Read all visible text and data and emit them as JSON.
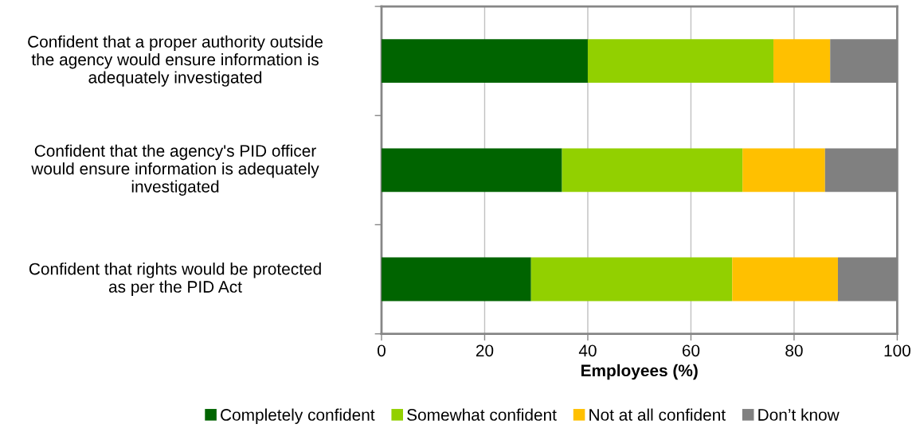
{
  "chart_data": {
    "type": "bar",
    "orientation": "horizontal",
    "stacked": true,
    "categories": [
      "Confident that a proper authority outside\nthe agency would ensure information is\nadequately investigated",
      "Confident that the agency's PID officer\nwould ensure information is adequately\ninvestigated",
      "Confident that rights would be protected\nas per the PID Act"
    ],
    "series": [
      {
        "name": "Completely confident",
        "color": "#006400",
        "values": [
          40,
          35,
          29
        ]
      },
      {
        "name": "Somewhat confident",
        "color": "#92d000",
        "values": [
          36,
          35,
          39
        ]
      },
      {
        "name": "Not at all confident",
        "color": "#ffc000",
        "values": [
          11,
          16,
          20.5
        ]
      },
      {
        "name": "Don’t know",
        "color": "#808080",
        "values": [
          13,
          14,
          11.5
        ]
      }
    ],
    "xlabel": "Employees (%)",
    "xlim": [
      0,
      100
    ],
    "xticks": [
      0,
      20,
      40,
      60,
      80,
      100
    ],
    "grid": "x",
    "legend": "bottom"
  }
}
